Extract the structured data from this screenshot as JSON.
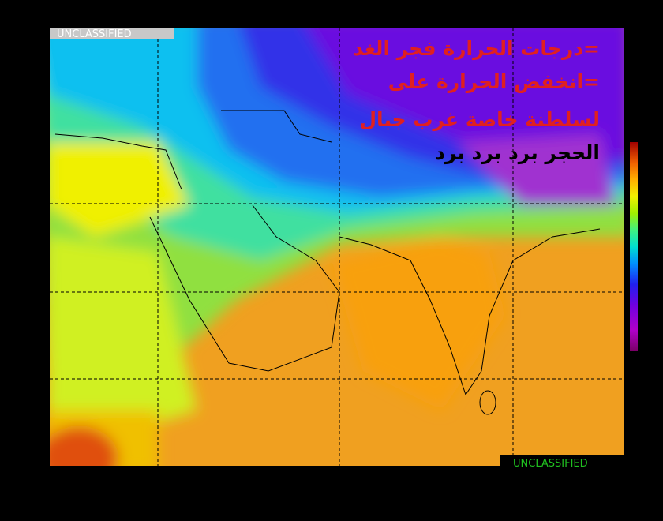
{
  "classification": {
    "top": "UNCLASSIFIED",
    "bottom": "UNCLASSIFIED"
  },
  "annotation": {
    "lines": [
      "=درجات الحرارة فجر الغد",
      "=انخفض الحرارة على",
      "لسلطنة خاصة غرب جبال",
      "الحجر برد برد برد"
    ]
  }
}
